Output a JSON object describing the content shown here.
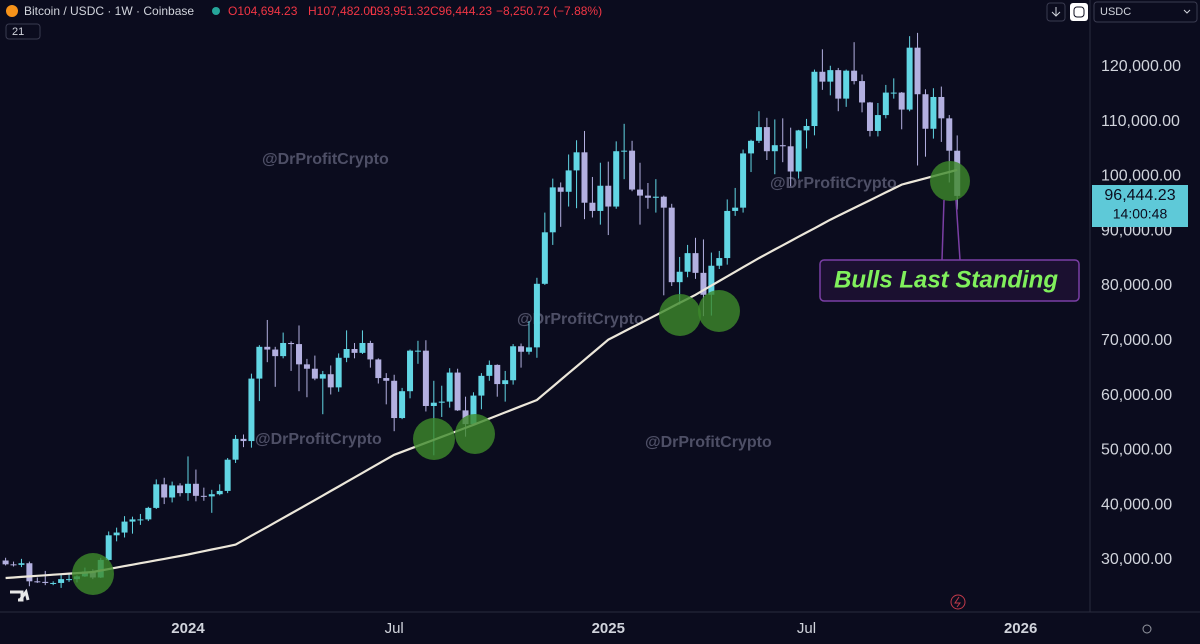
{
  "header": {
    "symbol": "Bitcoin / USDC · 1W · Coinbase",
    "open": "O104,694.23",
    "high": "H107,482.00",
    "low": "L93,951.32",
    "close": "C96,444.23",
    "change": "−8,250.72 (−7.88%)"
  },
  "currency": "USDC",
  "watermarks": [
    "@DrProfitCrypto",
    "@DrProfitCrypto",
    "@DrProfitCrypto",
    "@DrProfitCrypto",
    "@DrProfitCrypto"
  ],
  "annotation": "Bulls Last Standing",
  "chart_data": {
    "type": "candlestick",
    "categories": [
      null,
      null,
      null,
      null,
      null,
      null,
      null,
      null,
      null,
      null,
      null,
      null,
      null,
      null,
      null,
      null,
      null,
      null,
      null,
      null,
      null,
      null,
      null,
      "2024",
      null,
      null,
      null,
      null,
      null,
      null,
      null,
      null,
      null,
      null,
      null,
      null,
      null,
      null,
      null,
      null,
      null,
      null,
      null,
      null,
      null,
      null,
      null,
      null,
      null,
      "Jul",
      null,
      null,
      null,
      null,
      null,
      null,
      null,
      null,
      null,
      null,
      null,
      null,
      null,
      null,
      null,
      null,
      null,
      null,
      null,
      null,
      null,
      null,
      null,
      null,
      null,
      null,
      "2025",
      null,
      null,
      null,
      null,
      null,
      null,
      null,
      null,
      null,
      null,
      null,
      null,
      null,
      null,
      null,
      null,
      null,
      null,
      null,
      null,
      null,
      null,
      null,
      null,
      "Jul",
      null,
      null,
      null,
      null,
      null,
      null,
      null,
      null,
      null,
      null,
      null,
      null,
      null,
      null,
      null,
      null,
      null,
      null,
      null,
      null,
      null,
      null,
      null,
      null,
      null,
      null,
      "2026"
    ],
    "open": [
      29900,
      29200,
      29100,
      29400,
      26100,
      26000,
      25800,
      25800,
      26500,
      26500,
      27000,
      27900,
      26800,
      30000,
      34500,
      35000,
      37000,
      37400,
      37400,
      39500,
      43800,
      41400,
      43600,
      42200,
      43900,
      41700,
      41600,
      42000,
      42600,
      48300,
      52100,
      51700,
      63100,
      68900,
      68400,
      67200,
      69600,
      69400,
      65700,
      64900,
      63100,
      63900,
      61500,
      66900,
      68500,
      67800,
      69600,
      66600,
      63200,
      62700,
      55900,
      60800,
      68200,
      68200,
      58100,
      58700,
      58900,
      64200,
      57300,
      54800,
      60000,
      63600,
      65600,
      62100,
      62800,
      69000,
      68000,
      68800,
      80400,
      89800,
      98000,
      97200,
      101100,
      104400,
      95200,
      93700,
      98300,
      94500,
      104600,
      104700,
      97600,
      96500,
      96100,
      96300,
      94300,
      80700,
      82600,
      86000,
      82400,
      78400,
      83700,
      85100,
      93700,
      94300,
      104200,
      106500,
      109000,
      104600,
      105700,
      105500,
      100900,
      108400,
      109200,
      119100,
      117300,
      119400,
      114200,
      119300,
      117400,
      113500,
      108300,
      111200,
      115300,
      115300,
      112200,
      123500,
      115000,
      108700,
      114500,
      110600,
      104694.23,
      null,
      null,
      null,
      null,
      null,
      null,
      null,
      null
    ],
    "high": [
      30400,
      29700,
      30200,
      29700,
      26800,
      28000,
      26100,
      27400,
      27400,
      27200,
      28600,
      28300,
      30400,
      35200,
      35900,
      38000,
      37900,
      38400,
      39700,
      44700,
      45000,
      44300,
      44000,
      48900,
      46500,
      43200,
      42800,
      43800,
      48600,
      52800,
      52900,
      64000,
      69200,
      73800,
      68900,
      71500,
      69900,
      72800,
      66700,
      67300,
      64500,
      65500,
      67700,
      71900,
      69600,
      71900,
      70000,
      66800,
      64100,
      63800,
      61400,
      68400,
      70000,
      70100,
      62700,
      61800,
      65000,
      64900,
      59800,
      60600,
      64100,
      66400,
      65700,
      64500,
      69400,
      69500,
      73600,
      81500,
      93400,
      99600,
      98900,
      104000,
      106600,
      108300,
      99900,
      102500,
      102700,
      106400,
      109600,
      106500,
      102500,
      98800,
      99500,
      96500,
      95000,
      85300,
      87500,
      88800,
      88500,
      86100,
      86400,
      95800,
      97900,
      104900,
      106700,
      111900,
      110700,
      110400,
      110600,
      108900,
      108500,
      110500,
      119500,
      123200,
      120200,
      119800,
      119500,
      124500,
      118600,
      113600,
      113400,
      116700,
      117900,
      115400,
      125600,
      126200,
      115900,
      116100,
      116400,
      111200,
      107482,
      null,
      null,
      null,
      null,
      null,
      null,
      null,
      null
    ],
    "low": [
      29000,
      28800,
      28700,
      25200,
      25800,
      25400,
      25400,
      24900,
      26000,
      25900,
      26900,
      26500,
      26700,
      29900,
      33400,
      34100,
      34800,
      36400,
      37100,
      39300,
      40200,
      40500,
      41600,
      40800,
      40700,
      40800,
      38600,
      41800,
      42200,
      47700,
      50600,
      50500,
      59000,
      66100,
      61600,
      66800,
      64500,
      60800,
      59700,
      62800,
      56600,
      60200,
      60700,
      66100,
      66800,
      67600,
      65100,
      62200,
      58400,
      53500,
      55700,
      59500,
      65800,
      57100,
      49100,
      56100,
      57800,
      57200,
      52500,
      54600,
      57500,
      62700,
      59800,
      58900,
      62000,
      65100,
      67500,
      66900,
      80200,
      87500,
      90800,
      94500,
      94200,
      92200,
      92500,
      91200,
      89300,
      94100,
      99500,
      97300,
      91200,
      94100,
      93400,
      78300,
      80000,
      76600,
      81600,
      81300,
      74500,
      74600,
      83100,
      83900,
      92800,
      93400,
      100800,
      106100,
      103000,
      100400,
      102600,
      98200,
      99600,
      105100,
      107500,
      115800,
      114800,
      111900,
      112700,
      116800,
      111700,
      107300,
      107300,
      110600,
      114200,
      108600,
      111900,
      102000,
      103600,
      106900,
      106300,
      98900,
      93951.32,
      null,
      null,
      null,
      null,
      null,
      null,
      null,
      null
    ],
    "close": [
      29200,
      29100,
      29400,
      26100,
      26000,
      25800,
      25800,
      26500,
      26500,
      27000,
      27900,
      26800,
      30000,
      34500,
      35000,
      37000,
      37400,
      37400,
      39500,
      43800,
      41400,
      43600,
      42200,
      43900,
      41700,
      41600,
      42000,
      42600,
      48300,
      52100,
      51700,
      63100,
      68900,
      68400,
      67200,
      69600,
      69400,
      65700,
      64900,
      63100,
      63900,
      61500,
      66900,
      68500,
      67800,
      69600,
      66600,
      63200,
      62700,
      55900,
      60800,
      68200,
      68200,
      58100,
      58700,
      58900,
      64200,
      57300,
      54800,
      60000,
      63600,
      65600,
      62100,
      62800,
      69000,
      68000,
      68800,
      80400,
      89800,
      98000,
      97200,
      101100,
      104400,
      95200,
      93700,
      98300,
      94500,
      104600,
      104700,
      97600,
      96500,
      96100,
      96300,
      94300,
      80700,
      82600,
      86000,
      82400,
      78400,
      83700,
      85100,
      93700,
      94300,
      104200,
      106500,
      109000,
      104600,
      105700,
      105500,
      100900,
      108400,
      109200,
      119100,
      117300,
      119400,
      114200,
      119300,
      117400,
      113500,
      108300,
      111200,
      115300,
      115300,
      112200,
      123500,
      115000,
      108700,
      114500,
      110600,
      104694.23,
      96444.23,
      null,
      null,
      null,
      null,
      null,
      null,
      null,
      null
    ],
    "up_color": "#62d6e4",
    "down_color": "#b3b0e0",
    "ma": {
      "name": "21",
      "color": "#ece7da",
      "values": [
        26700,
        26800,
        26900,
        27000,
        27100,
        27200,
        27300,
        27400,
        27500,
        27600,
        27700,
        27800,
        28070,
        28330,
        28600,
        28870,
        29130,
        29400,
        29670,
        29930,
        30200,
        30470,
        30730,
        31000,
        31300,
        31600,
        31900,
        32200,
        32500,
        32800,
        33610,
        34420,
        35230,
        36040,
        36860,
        37670,
        38480,
        39290,
        40100,
        40930,
        41750,
        42580,
        43410,
        44240,
        45060,
        45890,
        46720,
        47550,
        48370,
        49200,
        49740,
        50290,
        50830,
        51380,
        51920,
        52470,
        53010,
        53560,
        54100,
        54670,
        55230,
        55800,
        56370,
        56930,
        57500,
        58070,
        58630,
        59200,
        60420,
        61640,
        62870,
        64090,
        65310,
        66530,
        67760,
        68980,
        70200,
        70950,
        71690,
        72440,
        73180,
        73930,
        74670,
        75420,
        76160,
        76910,
        77650,
        78400,
        79240,
        80080,
        80910,
        81750,
        82590,
        83430,
        84260,
        85100,
        85880,
        86660,
        87430,
        88210,
        88990,
        89770,
        90540,
        91320,
        92100,
        92810,
        93520,
        94230,
        94940,
        95660,
        96370,
        97080,
        97790,
        98500,
        98890,
        99270,
        99660,
        100040,
        100430,
        100810,
        101200,
        null,
        null,
        null,
        null,
        null,
        null,
        null,
        null
      ]
    },
    "last_price_label": "96,444.23",
    "countdown": "14:00:48",
    "ylim": [
      20500,
      132200
    ],
    "yticks": [
      {
        "value": 30000,
        "label": "30,000.00"
      },
      {
        "value": 40000,
        "label": "40,000.00"
      },
      {
        "value": 50000,
        "label": "50,000.00"
      },
      {
        "value": 60000,
        "label": "60,000.00"
      },
      {
        "value": 70000,
        "label": "70,000.00"
      },
      {
        "value": 80000,
        "label": "80,000.00"
      },
      {
        "value": 90000,
        "label": "90,000.00"
      },
      {
        "value": 100000,
        "label": "100,000.00"
      },
      {
        "value": 110000,
        "label": "110,000.00"
      },
      {
        "value": 120000,
        "label": "120,000.00"
      }
    ],
    "grid": false
  }
}
